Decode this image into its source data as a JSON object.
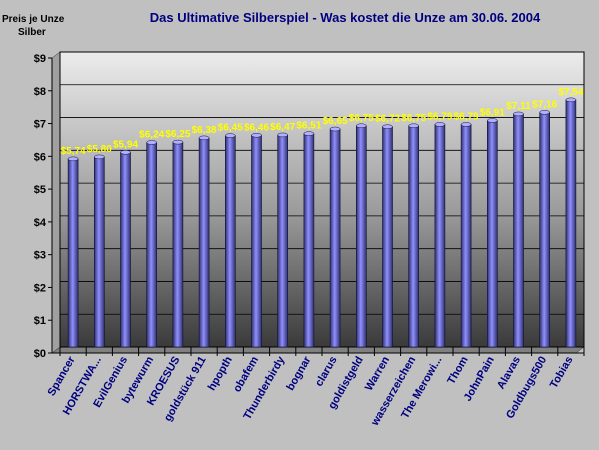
{
  "chart_data": {
    "type": "bar",
    "title": "Das Ultimative Silberspiel - Was kostet die Unze am 30.06. 2004",
    "ylabel_line1": "Preis je Unze",
    "ylabel_line2": "Silber",
    "xlabel": "",
    "ylim": [
      0,
      9
    ],
    "yticks": [
      "$0",
      "$1",
      "$2",
      "$3",
      "$4",
      "$5",
      "$6",
      "$7",
      "$8",
      "$9"
    ],
    "grid": true,
    "categories": [
      "Spancer",
      "HORSTWA...",
      "EvilGenius",
      "bytewurm",
      "KROESUS",
      "goldstück 911",
      "hpopth",
      "obafem",
      "Thunderbirdy",
      "bognar",
      "clarus",
      "goldistgeld",
      "Warren",
      "wasserzeichen",
      "The Merowi...",
      "Thom",
      "JohnPain",
      "Alavas",
      "Goldbugs500",
      "Tobias"
    ],
    "values": [
      5.74,
      5.8,
      5.94,
      6.24,
      6.25,
      6.38,
      6.45,
      6.46,
      6.47,
      6.51,
      6.65,
      6.75,
      6.72,
      6.75,
      6.79,
      6.79,
      6.91,
      7.11,
      7.16,
      7.54
    ],
    "data_labels": [
      "$5,74",
      "$5,80",
      "$5,94",
      "$6,24",
      "$6,25",
      "$6,38",
      "$6,45",
      "$6,46",
      "$6,47",
      "$6,51",
      "$6,65",
      "$6,75",
      "$6,72",
      "$6,75",
      "$6,79",
      "$6,79",
      "$6,91",
      "$7,11",
      "$7,16",
      "$7,54"
    ],
    "colors": {
      "bar_fill": "#8080ff",
      "bar_dark": "#202050",
      "plot_top": "#e8e8e8",
      "plot_bottom": "#404040",
      "background": "#c0c0c0",
      "data_label": "#ffff00",
      "title": "#000080",
      "category": "#000080"
    }
  }
}
